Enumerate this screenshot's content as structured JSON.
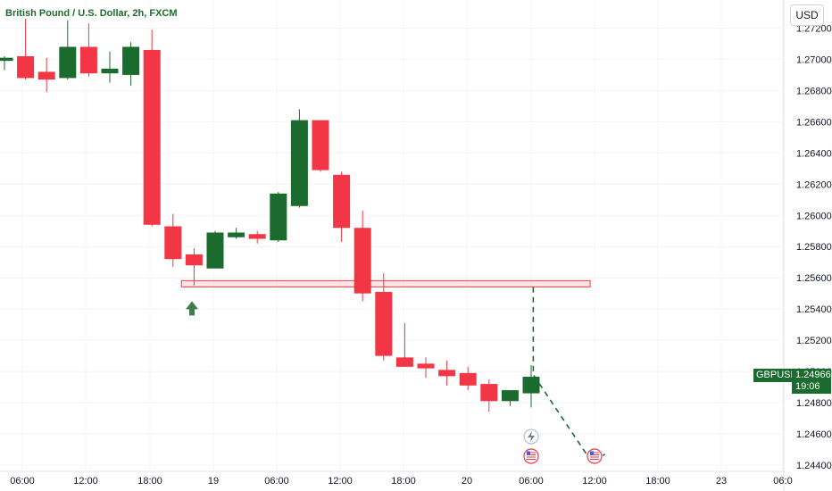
{
  "header": {
    "title": "British Pound / U.S. Dollar, 2h, FXCM"
  },
  "currency_button": {
    "label": "USD"
  },
  "last_price": {
    "symbol": "GBPUSD",
    "price": "1.24966",
    "countdown": "19:06"
  },
  "colors": {
    "up": "#1a6b2d",
    "down": "#f23645",
    "zone": "#f23645",
    "projection": "#1a6b2d",
    "arrow": "#3f7c4a"
  },
  "chart_data": {
    "type": "candlestick",
    "y_ticks": [
      "1.27200",
      "1.27000",
      "1.26800",
      "1.26600",
      "1.26400",
      "1.26200",
      "1.26000",
      "1.25800",
      "1.25600",
      "1.25400",
      "1.25200",
      "1.25000",
      "1.24800",
      "1.24600",
      "1.24400"
    ],
    "x_ticks": [
      "06:00",
      "12:00",
      "18:00",
      "19",
      "06:00",
      "12:00",
      "18:00",
      "20",
      "06:00",
      "12:00",
      "18:00",
      "23",
      "06:0"
    ],
    "ylim": [
      1.2436,
      1.2738
    ],
    "candles": [
      {
        "o": 1.2699,
        "h": 1.2702,
        "l": 1.2693,
        "c": 1.2701
      },
      {
        "o": 1.2702,
        "h": 1.2726,
        "l": 1.2687,
        "c": 1.2688
      },
      {
        "o": 1.2692,
        "h": 1.2701,
        "l": 1.2679,
        "c": 1.2687
      },
      {
        "o": 1.2688,
        "h": 1.2725,
        "l": 1.2687,
        "c": 1.2708
      },
      {
        "o": 1.2708,
        "h": 1.2723,
        "l": 1.2689,
        "c": 1.2691
      },
      {
        "o": 1.2691,
        "h": 1.2705,
        "l": 1.2685,
        "c": 1.2694
      },
      {
        "o": 1.269,
        "h": 1.2711,
        "l": 1.2683,
        "c": 1.2708
      },
      {
        "o": 1.2706,
        "h": 1.2719,
        "l": 1.2593,
        "c": 1.2594
      },
      {
        "o": 1.2593,
        "h": 1.2601,
        "l": 1.2567,
        "c": 1.2572
      },
      {
        "o": 1.2575,
        "h": 1.2579,
        "l": 1.2555,
        "c": 1.2568
      },
      {
        "o": 1.2566,
        "h": 1.259,
        "l": 1.2566,
        "c": 1.2589
      },
      {
        "o": 1.2586,
        "h": 1.2592,
        "l": 1.2585,
        "c": 1.2589
      },
      {
        "o": 1.2588,
        "h": 1.259,
        "l": 1.2582,
        "c": 1.2585
      },
      {
        "o": 1.2584,
        "h": 1.2615,
        "l": 1.2583,
        "c": 1.2614
      },
      {
        "o": 1.2606,
        "h": 1.2668,
        "l": 1.2605,
        "c": 1.2661
      },
      {
        "o": 1.2661,
        "h": 1.2661,
        "l": 1.2628,
        "c": 1.2629
      },
      {
        "o": 1.2626,
        "h": 1.2628,
        "l": 1.2583,
        "c": 1.2592
      },
      {
        "o": 1.2592,
        "h": 1.2603,
        "l": 1.2545,
        "c": 1.255
      },
      {
        "o": 1.2551,
        "h": 1.2563,
        "l": 1.2507,
        "c": 1.251
      },
      {
        "o": 1.2509,
        "h": 1.2531,
        "l": 1.2503,
        "c": 1.2503
      },
      {
        "o": 1.2505,
        "h": 1.2509,
        "l": 1.2496,
        "c": 1.2502
      },
      {
        "o": 1.2501,
        "h": 1.2507,
        "l": 1.2491,
        "c": 1.2497
      },
      {
        "o": 1.2499,
        "h": 1.2503,
        "l": 1.2488,
        "c": 1.2491
      },
      {
        "o": 1.2492,
        "h": 1.2495,
        "l": 1.2474,
        "c": 1.2481
      },
      {
        "o": 1.2481,
        "h": 1.2488,
        "l": 1.2478,
        "c": 1.2488
      },
      {
        "o": 1.2486,
        "h": 1.2504,
        "l": 1.2477,
        "c": 1.24966
      }
    ],
    "zone": {
      "from_candle": 8.4,
      "to_candle": 27.8,
      "top": 1.25582,
      "bottom": 1.25553
    },
    "projection": [
      {
        "candle": 25.1,
        "price": 1.2554
      },
      {
        "candle": 25.1,
        "price": 1.2498
      },
      {
        "candle": 27.9,
        "price": 1.24415
      },
      {
        "candle": 28.5,
        "price": 1.2447
      }
    ],
    "up_arrow": {
      "candle": 8.9,
      "price": 1.2545
    }
  }
}
